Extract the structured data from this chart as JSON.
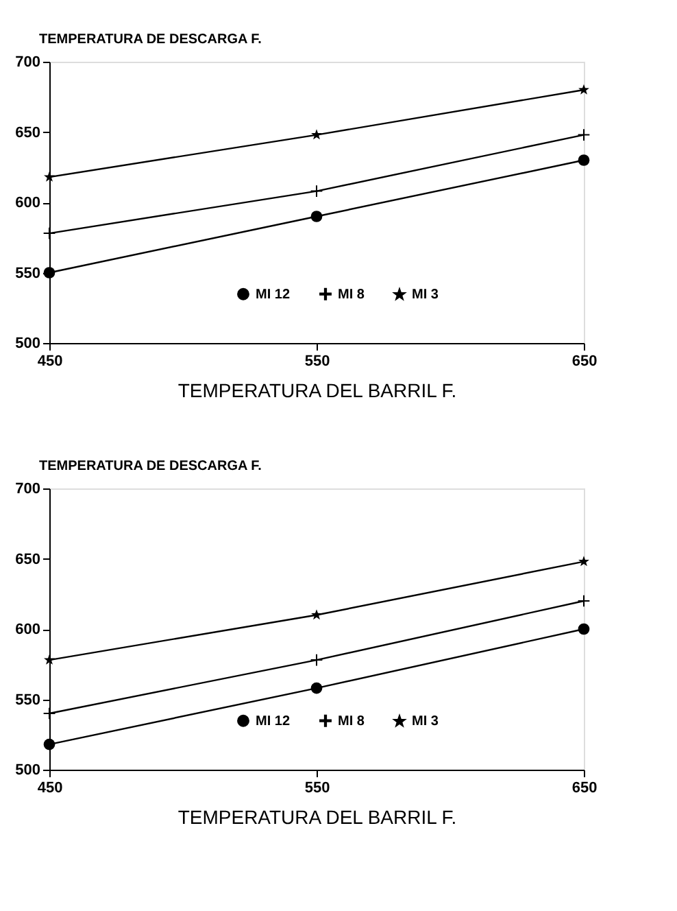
{
  "chart_data": [
    {
      "type": "line",
      "ylabel": "TEMPERATURA DE DESCARGA  F.",
      "xlabel": "TEMPERATURA DEL BARRIL  F.",
      "x": [
        450,
        550,
        650
      ],
      "xlim": [
        450,
        650
      ],
      "xticks": [
        450,
        550,
        650
      ],
      "ylim": [
        500,
        700
      ],
      "yticks": [
        500,
        550,
        600,
        650,
        700
      ],
      "grid": false,
      "legend": "bottom",
      "series": [
        {
          "name": "MI 12",
          "color": "#000000",
          "marker": "circle",
          "values": [
            550,
            590,
            630
          ]
        },
        {
          "name": "MI 8",
          "color": "#000000",
          "marker": "cross",
          "values": [
            578,
            608,
            648
          ]
        },
        {
          "name": "MI 3",
          "color": "#000000",
          "marker": "star",
          "values": [
            618,
            648,
            680
          ]
        }
      ]
    },
    {
      "type": "line",
      "ylabel": "TEMPERATURA DE DESCARGA  F.",
      "xlabel": "TEMPERATURA DEL BARRIL  F.",
      "x": [
        450,
        550,
        650
      ],
      "xlim": [
        450,
        650
      ],
      "xticks": [
        450,
        550,
        650
      ],
      "ylim": [
        500,
        700
      ],
      "yticks": [
        500,
        550,
        600,
        650,
        700
      ],
      "grid": false,
      "legend": "bottom",
      "series": [
        {
          "name": "MI 12",
          "color": "#000000",
          "marker": "circle",
          "values": [
            518,
            558,
            600
          ]
        },
        {
          "name": "MI 8",
          "color": "#000000",
          "marker": "cross",
          "values": [
            540,
            578,
            620
          ]
        },
        {
          "name": "MI 3",
          "color": "#000000",
          "marker": "star",
          "values": [
            578,
            610,
            648
          ]
        }
      ]
    }
  ]
}
